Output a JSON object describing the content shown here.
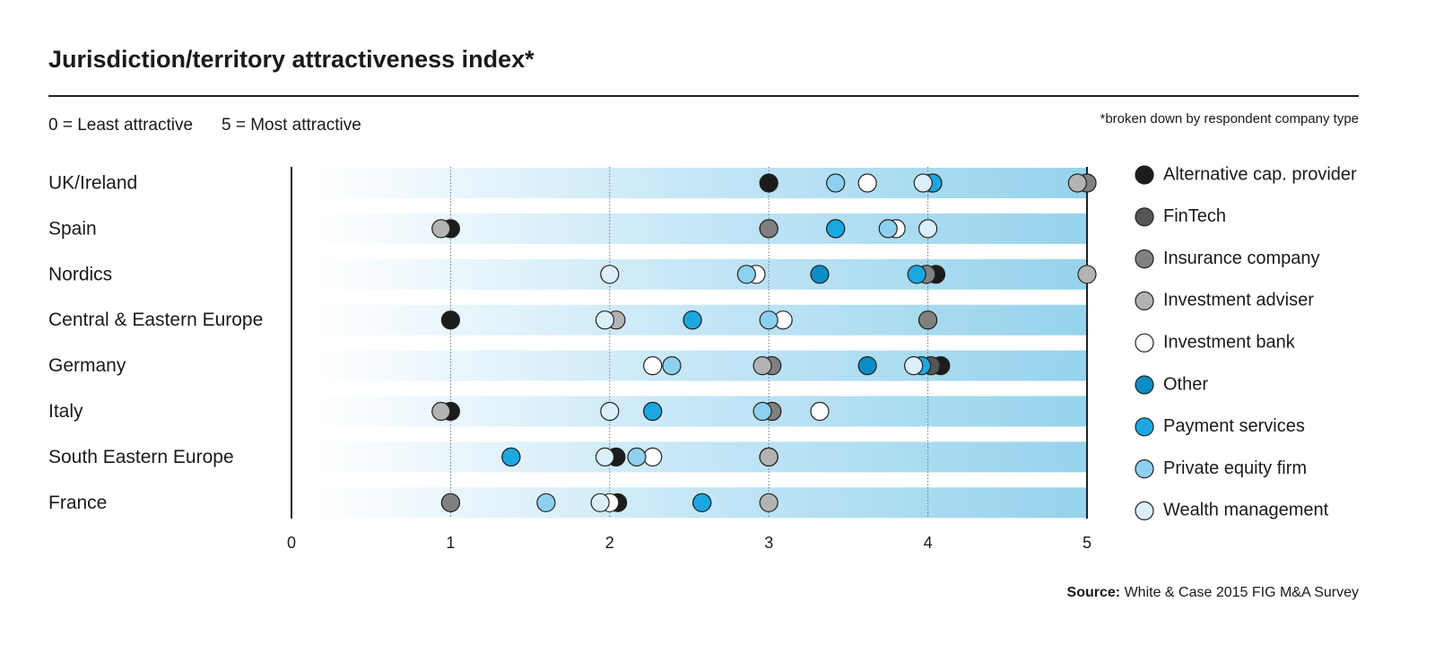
{
  "chart_data": {
    "type": "dot",
    "title": "Jurisdiction/territory attractiveness index*",
    "scale_labels": [
      "0 = Least attractive",
      "5 = Most attractive"
    ],
    "note": "*broken down by respondent company type",
    "source_label": "Source:",
    "source": "White & Case 2015 FIG M&A Survey",
    "categories": [
      "UK/Ireland",
      "Spain",
      "Nordics",
      "Central & Eastern Europe",
      "Germany",
      "Italy",
      "South Eastern Europe",
      "France"
    ],
    "xlim": [
      0,
      5
    ],
    "xticks": [
      0,
      1,
      2,
      3,
      4,
      5
    ],
    "grid": true,
    "series": [
      {
        "name": "Alternative cap. provider",
        "color": "#1c1c1c",
        "values": [
          3.0,
          1.0,
          4.05,
          1.0,
          4.08,
          1.0,
          2.04,
          2.05
        ]
      },
      {
        "name": "FinTech",
        "color": "#555555",
        "values": [
          5.0,
          3.0,
          3.99,
          4.0,
          4.02,
          3.02,
          3.0,
          1.0
        ]
      },
      {
        "name": "Insurance company",
        "color": "#808080",
        "values": [
          5.0,
          3.0,
          3.99,
          4.0,
          3.02,
          3.02,
          3.0,
          1.0
        ]
      },
      {
        "name": "Investment adviser",
        "color": "#b3b3b3",
        "values": [
          4.94,
          0.94,
          5.0,
          2.04,
          2.96,
          0.94,
          3.0,
          3.0
        ]
      },
      {
        "name": "Investment bank",
        "color": "#ffffff",
        "values": [
          3.62,
          3.8,
          2.92,
          3.09,
          2.27,
          3.32,
          2.27,
          2.0
        ]
      },
      {
        "name": "Other",
        "color": "#0b8cc4",
        "values": [
          4.03,
          3.42,
          3.32,
          2.52,
          3.62,
          2.27,
          1.38,
          2.58
        ]
      },
      {
        "name": "Payment services",
        "color": "#1ba8e0",
        "values": [
          4.03,
          3.42,
          3.93,
          2.52,
          3.96,
          2.27,
          1.38,
          2.58
        ]
      },
      {
        "name": "Private equity firm",
        "color": "#8dd0ef",
        "values": [
          3.42,
          3.75,
          2.86,
          3.0,
          2.39,
          2.96,
          2.17,
          1.6
        ]
      },
      {
        "name": "Wealth management",
        "color": "#dcf0fa",
        "values": [
          3.97,
          4.0,
          2.0,
          1.97,
          3.91,
          2.0,
          1.97,
          1.94
        ]
      }
    ]
  }
}
